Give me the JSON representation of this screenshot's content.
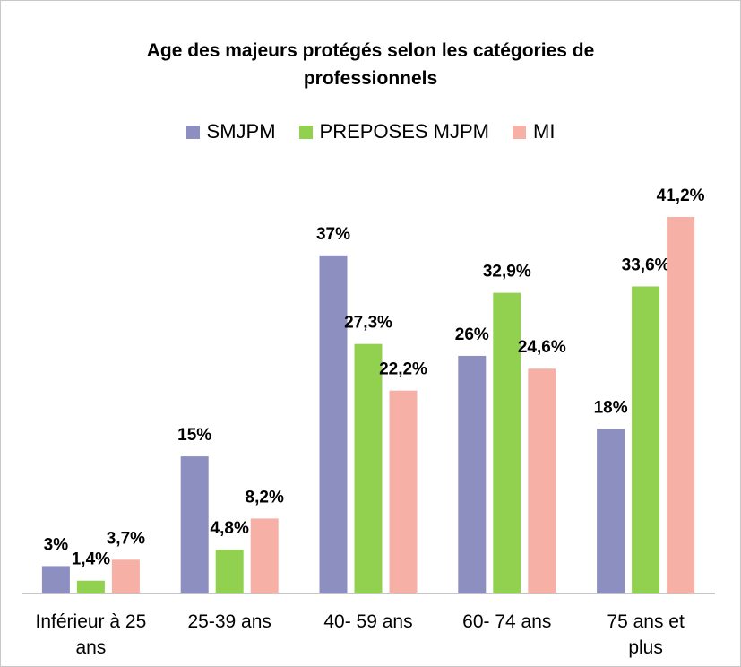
{
  "chart_data": {
    "type": "bar",
    "title": "Age des majeurs protégés selon les catégories de professionnels",
    "categories": [
      "Inférieur à 25 ans",
      "25-39 ans",
      "40- 59 ans",
      "60- 74 ans",
      "75 ans et plus"
    ],
    "series": [
      {
        "name": "SMJPM",
        "color": "#8c8fc0",
        "values": [
          3,
          15,
          37,
          26,
          18
        ],
        "value_labels": [
          "3%",
          "15%",
          "37%",
          "26%",
          "18%"
        ]
      },
      {
        "name": "PREPOSES MJPM",
        "color": "#92d050",
        "values": [
          1.4,
          4.8,
          27.3,
          32.9,
          33.6
        ],
        "value_labels": [
          "1,4%",
          "4,8%",
          "27,3%",
          "32,9%",
          "33,6%"
        ]
      },
      {
        "name": "MI",
        "color": "#f7b0a6",
        "values": [
          3.7,
          8.2,
          22.2,
          24.6,
          41.2
        ],
        "value_labels": [
          "3,7%",
          "8,2%",
          "22,2%",
          "24,6%",
          "41,2%"
        ]
      }
    ],
    "legend": "top"
  }
}
